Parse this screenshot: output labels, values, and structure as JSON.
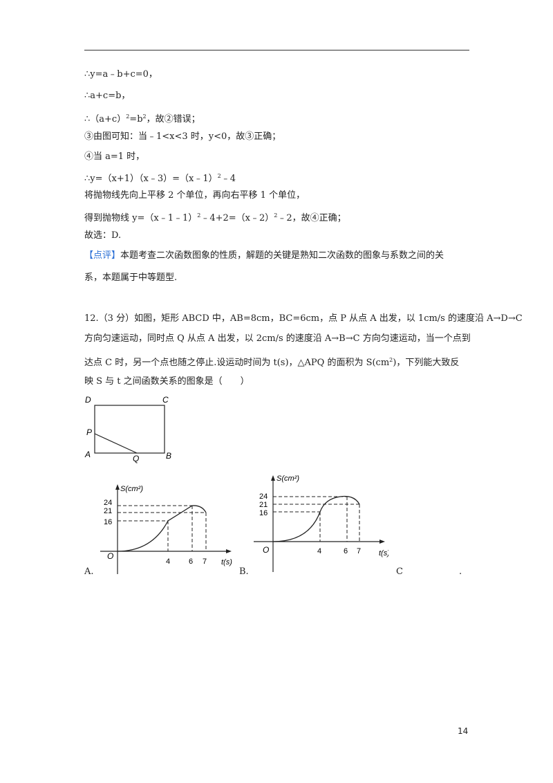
{
  "lines": [
    "∴y=a﹣b+c=0，",
    "∴a+c=b，",
    "③由图可知：当﹣1<x<3 时，y<0，故③正确；",
    "④当 a=1 时，",
    "∴y=（x+1）（x﹣3）=（x﹣1）",
    "将抛物线先向上平移 2 个单位，再向右平移 1 个单位，",
    "故选：D."
  ],
  "line3": {
    "pre": "∴（a+c）",
    "sup1": "2",
    "mid": "=b",
    "sup2": "2",
    "post": "，故②错误；"
  },
  "line6_tail": {
    "sup": "2",
    "post": "﹣4"
  },
  "line8": {
    "pre": "得到抛物线 y=（x﹣1﹣1）",
    "sup1": "2",
    "mid": "﹣4+2=（x﹣2）",
    "sup2": "2",
    "post": "﹣2，故④正确；"
  },
  "comment": {
    "tag": "【点评】",
    "line1": "本题考查二次函数图象的性质，解题的关键是熟知二次函数的图象与系数之间的关",
    "line2": "系，本题属于中等题型."
  },
  "question": {
    "line1": "12.（3 分）如图，矩形 ABCD 中，AB=8cm，BC=6cm，点 P 从点 A 出发，以 1cm/s 的速度沿 A→D→C",
    "line2": "方向匀速运动，同时点 Q 从点 A 出发，以 2cm/s 的速度沿 A→B→C 方向匀速运动，当一个点到",
    "line3_pre": "达点 C 时，另一个点也随之停止.设运动时间为 t(s)，△APQ 的面积为 S(cm",
    "line3_sup": "2",
    "line3_post": ")，下列能大致反",
    "line4": "映 S 与 t 之间函数关系的图象是（　　）"
  },
  "rect_figure": {
    "labels": [
      "D",
      "C",
      "P",
      "A",
      "Q",
      "B"
    ]
  },
  "graphs": [
    {
      "y_label": "S(cm²)",
      "y_ticks": [
        "24",
        "21",
        "16"
      ],
      "x_ticks": [
        "4",
        "6",
        "7"
      ],
      "x_label": "t(s)",
      "origin": "O",
      "chart_data": {
        "type": "line",
        "x": [
          0,
          4,
          6,
          7
        ],
        "y": [
          0,
          16,
          24,
          21
        ],
        "note_segments": [
          "curve 0-4",
          "straight 4-6",
          "curve 6-7"
        ]
      }
    },
    {
      "y_label": "S(cm²)",
      "y_ticks": [
        "24",
        "21",
        "16"
      ],
      "x_ticks": [
        "4",
        "6",
        "7"
      ],
      "x_label": "t(s)",
      "origin": "O",
      "chart_data": {
        "type": "line",
        "x": [
          0,
          4,
          6,
          7
        ],
        "y": [
          0,
          16,
          24,
          21
        ]
      }
    }
  ],
  "options": {
    "a": "A.",
    "b": "B.",
    "c": "C",
    "dot": "."
  },
  "page_number": "14"
}
